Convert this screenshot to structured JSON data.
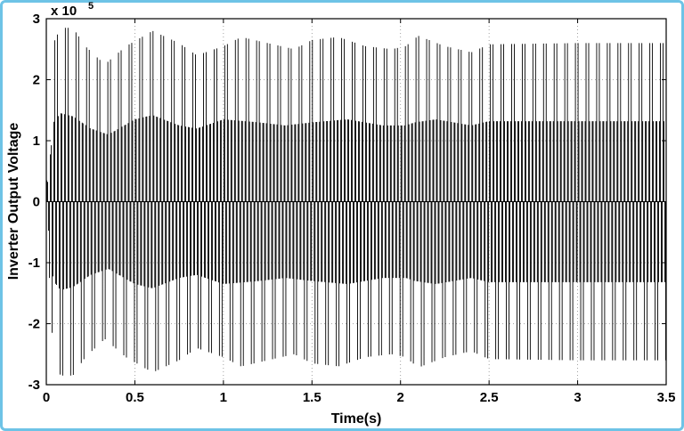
{
  "chart_data": {
    "type": "line",
    "xlabel": "Time(s)",
    "ylabel": "Inverter Output Voltage",
    "y_scale_label": "x 10",
    "y_scale_exponent": "5",
    "xlim": [
      0,
      3.5
    ],
    "ylim": [
      -3,
      3
    ],
    "x_ticks": [
      "0",
      "0.5",
      "1",
      "1.5",
      "2",
      "2.5",
      "3",
      "3.5"
    ],
    "y_ticks": [
      "-3",
      "-2",
      "-1",
      "0",
      "1",
      "2",
      "3"
    ],
    "grid": true,
    "series": [
      {
        "style": "PWM switched voltage, dense bipolar pulses",
        "envelope_outer_max": {
          "x": [
            0.0,
            0.04,
            0.08,
            0.15,
            0.22,
            0.33,
            0.45,
            0.6,
            0.75,
            0.85,
            1.0,
            1.1,
            1.25,
            1.4,
            1.5,
            1.65,
            1.8,
            1.95,
            2.03,
            2.05,
            2.1,
            2.25,
            2.4,
            2.5,
            3.0,
            3.5
          ],
          "y": [
            0.2,
            2.6,
            2.85,
            2.85,
            2.55,
            2.25,
            2.55,
            2.8,
            2.6,
            2.4,
            2.55,
            2.7,
            2.6,
            2.5,
            2.65,
            2.7,
            2.55,
            2.5,
            2.55,
            2.6,
            2.72,
            2.55,
            2.45,
            2.58,
            2.6,
            2.6
          ]
        },
        "envelope_inner_max": {
          "x": [
            0.0,
            0.04,
            0.08,
            0.15,
            0.25,
            0.35,
            0.5,
            0.6,
            0.75,
            0.85,
            1.0,
            1.2,
            1.35,
            1.5,
            1.7,
            1.9,
            2.03,
            2.08,
            2.2,
            2.4,
            2.5,
            3.5
          ],
          "y": [
            0.1,
            1.3,
            1.45,
            1.4,
            1.2,
            1.1,
            1.35,
            1.42,
            1.25,
            1.2,
            1.35,
            1.3,
            1.25,
            1.3,
            1.35,
            1.25,
            1.25,
            1.3,
            1.35,
            1.25,
            1.32,
            1.32
          ]
        },
        "y_units": "x 10^5",
        "symmetric": true
      }
    ]
  }
}
